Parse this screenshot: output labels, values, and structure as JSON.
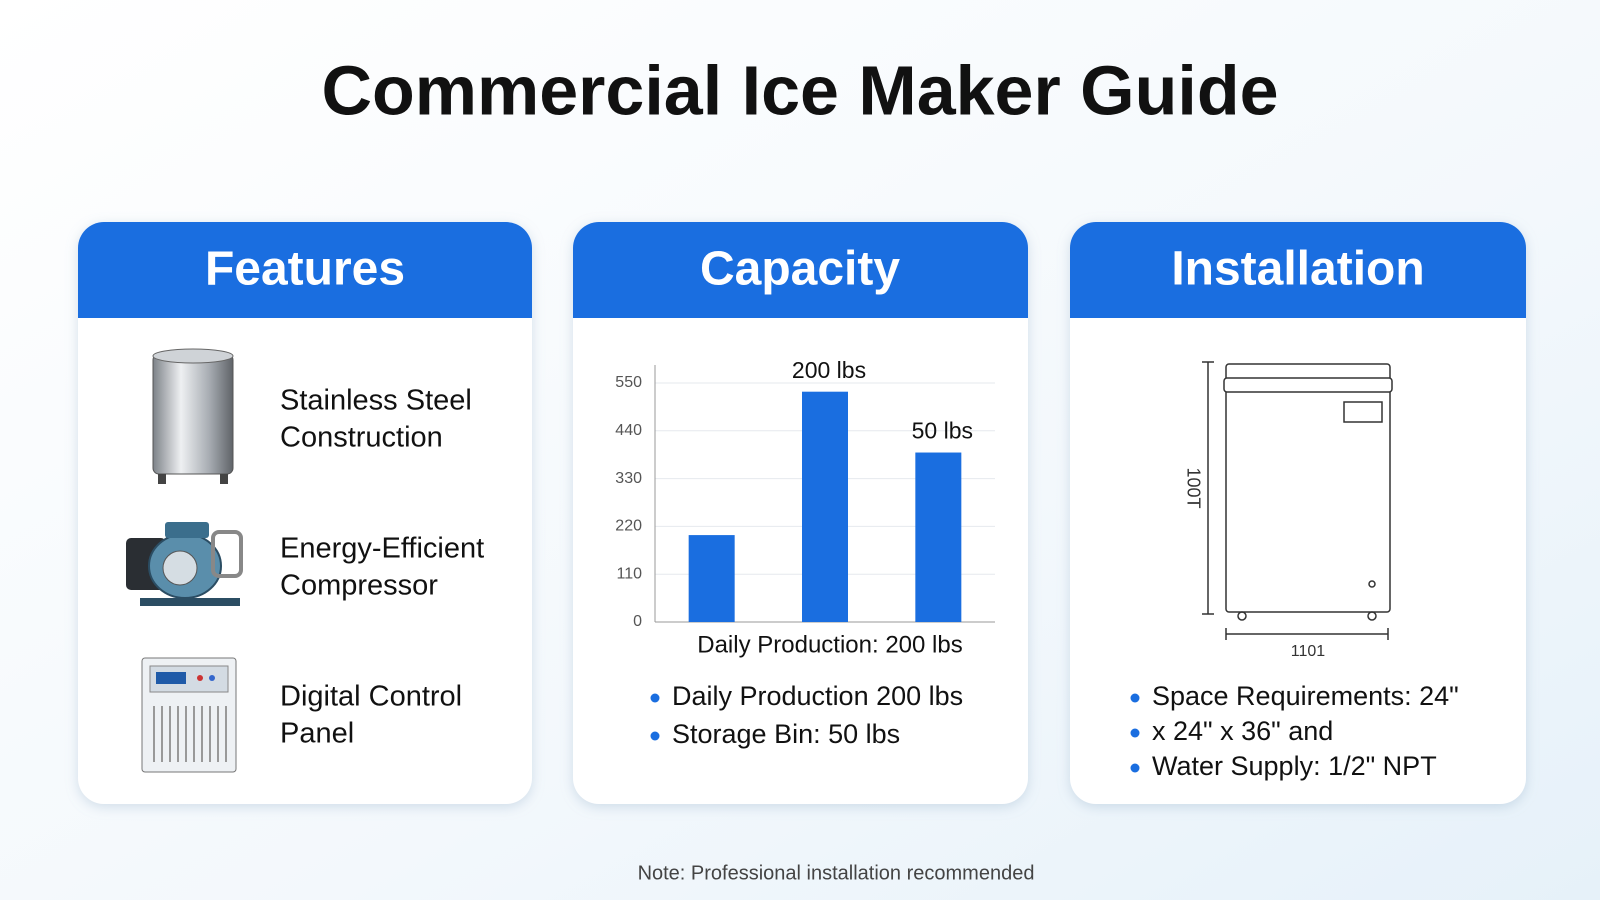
{
  "title": "Commercial Ice Maker Guide",
  "features": {
    "heading": "Features",
    "items": [
      {
        "lines": [
          "Stainless Steel",
          "Construction"
        ]
      },
      {
        "lines": [
          "Energy-Efficient",
          "Compressor"
        ]
      },
      {
        "lines": [
          "Digital Control",
          "Panel"
        ]
      }
    ]
  },
  "capacity": {
    "heading": "Capacity",
    "bullets": [
      "Daily Production 200 lbs",
      "Storage Bin: 50 lbs"
    ]
  },
  "chart_data": {
    "type": "bar",
    "categories": [
      null,
      null,
      null
    ],
    "values": [
      200,
      530,
      390
    ],
    "color": "#1a6ee0",
    "ylim": [
      0,
      550
    ],
    "yticks": [
      0,
      110,
      220,
      330,
      440,
      550
    ],
    "grid": true,
    "x_label": "Daily Production: 200 lbs",
    "annotations": [
      "200 lbs",
      "50 lbs"
    ]
  },
  "installation": {
    "heading": "Installation",
    "diagram_labels": [
      "100T",
      "1101"
    ],
    "bullets": [
      "Space Requirements: 24\"",
      "x 24\" x 36\"    and",
      "Water Supply: 1/2\" NPT"
    ]
  },
  "note": "Note: Professional installation recommended"
}
